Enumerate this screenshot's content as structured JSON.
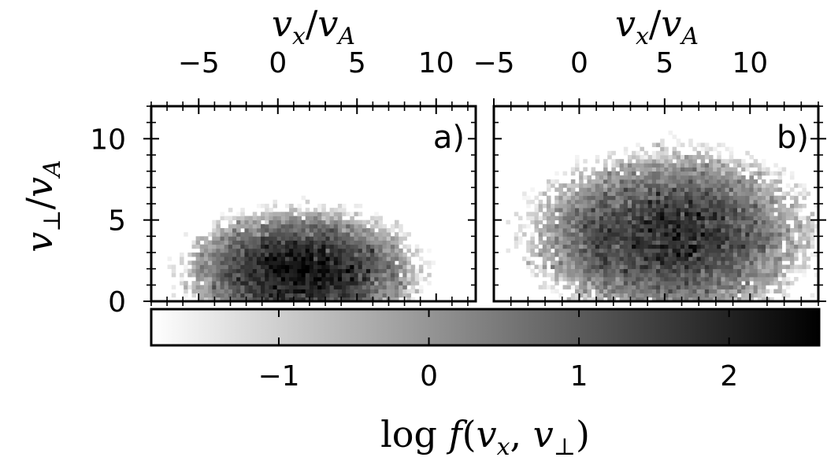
{
  "chart_data": [
    {
      "type": "heatmap",
      "panel_label": "a)",
      "xlim": [
        -8,
        12.5
      ],
      "ylim": [
        0,
        12
      ],
      "xticks": [
        -5,
        0,
        5,
        10
      ],
      "yticks": [
        0,
        5,
        10
      ],
      "xlabel": {
        "v": "v",
        "sub1": "x",
        "slash": "/",
        "v2": "v",
        "sub2": "A"
      },
      "ylabel": {
        "v": "v",
        "sub1": "⊥",
        "slash": "/",
        "v2": "v",
        "sub2": "A"
      },
      "peak": {
        "vx": 1.5,
        "vperp": 1.8,
        "log_f_max": 2.3
      },
      "spread": {
        "vx_sigma": 3.0,
        "vperp_sigma": 1.6
      },
      "colormap": "gray_r"
    },
    {
      "type": "heatmap",
      "panel_label": "b)",
      "xlim": [
        -5,
        14
      ],
      "ylim": [
        0,
        12
      ],
      "xticks": [
        -5,
        0,
        5,
        10
      ],
      "xlabel": {
        "v": "v",
        "sub1": "x",
        "slash": "/",
        "v2": "v",
        "sub2": "A"
      },
      "peak": {
        "vx": 5.5,
        "vperp": 4.0,
        "log_f_max": 1.8
      },
      "spread": {
        "vx_sigma": 3.5,
        "vperp_sigma": 2.3
      },
      "colormap": "gray_r"
    },
    {
      "type": "colorbar",
      "range": [
        -1.85,
        2.6
      ],
      "ticks": [
        "−1",
        "0",
        "1",
        "2"
      ],
      "tick_values": [
        -1,
        0,
        1,
        2
      ],
      "label": {
        "log": "log",
        "f": "f",
        "open": "(",
        "v1": "v",
        "sub1": "x",
        "comma": ",",
        "v2": "v",
        "sub2": "⊥",
        "close": ")"
      }
    }
  ],
  "colors": {
    "axis": "#000000",
    "background": "#ffffff",
    "cmap_low": "#ffffff",
    "cmap_high": "#000000"
  }
}
